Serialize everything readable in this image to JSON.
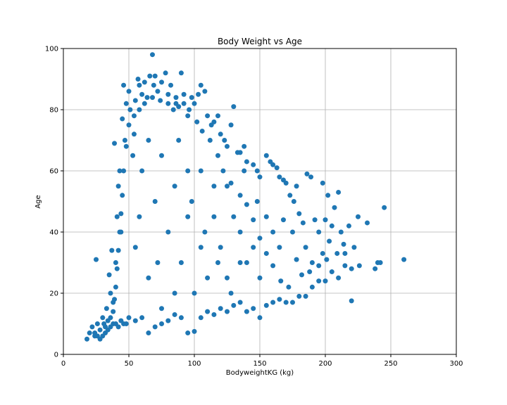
{
  "chart_data": {
    "type": "scatter",
    "title": "Body Weight vs Age",
    "xlabel": "BodyweightKG (kg)",
    "ylabel": "Age",
    "xlim": [
      0,
      300
    ],
    "ylim": [
      0,
      100
    ],
    "xticks": [
      "0",
      "50",
      "100",
      "150",
      "200",
      "250",
      "300"
    ],
    "yticks": [
      "0",
      "20",
      "40",
      "60",
      "80",
      "100"
    ],
    "grid": true,
    "color": "#1f77b4",
    "series": [
      {
        "points": [
          [
            18,
            5
          ],
          [
            20,
            7
          ],
          [
            22,
            9
          ],
          [
            24,
            6
          ],
          [
            25,
            31
          ],
          [
            26,
            10
          ],
          [
            28,
            8
          ],
          [
            30,
            12
          ],
          [
            32,
            9
          ],
          [
            33,
            15
          ],
          [
            35,
            26
          ],
          [
            36,
            20
          ],
          [
            37,
            34
          ],
          [
            38,
            17
          ],
          [
            39,
            69
          ],
          [
            40,
            30
          ],
          [
            41,
            45
          ],
          [
            42,
            55
          ],
          [
            43,
            60
          ],
          [
            44,
            40
          ],
          [
            45,
            77
          ],
          [
            46,
            88
          ],
          [
            47,
            70
          ],
          [
            48,
            82
          ],
          [
            50,
            86
          ],
          [
            51,
            80
          ],
          [
            53,
            65
          ],
          [
            54,
            72
          ],
          [
            55,
            83
          ],
          [
            57,
            90
          ],
          [
            58,
            88
          ],
          [
            60,
            85
          ],
          [
            62,
            89
          ],
          [
            64,
            84
          ],
          [
            66,
            91
          ],
          [
            68,
            98
          ],
          [
            69,
            88
          ],
          [
            70,
            91
          ],
          [
            72,
            86
          ],
          [
            75,
            89
          ],
          [
            78,
            92
          ],
          [
            80,
            85
          ],
          [
            82,
            88
          ],
          [
            84,
            80
          ],
          [
            86,
            84
          ],
          [
            88,
            81
          ],
          [
            90,
            92
          ],
          [
            92,
            85
          ],
          [
            95,
            78
          ],
          [
            98,
            84
          ],
          [
            100,
            82
          ],
          [
            103,
            85
          ],
          [
            105,
            88
          ],
          [
            108,
            86
          ],
          [
            110,
            78
          ],
          [
            113,
            75
          ],
          [
            115,
            76
          ],
          [
            118,
            78
          ],
          [
            120,
            72
          ],
          [
            123,
            70
          ],
          [
            125,
            68
          ],
          [
            128,
            75
          ],
          [
            130,
            81
          ],
          [
            133,
            66
          ],
          [
            135,
            66
          ],
          [
            138,
            68
          ],
          [
            140,
            63
          ],
          [
            145,
            62
          ],
          [
            148,
            60
          ],
          [
            150,
            58
          ],
          [
            155,
            65
          ],
          [
            158,
            63
          ],
          [
            160,
            62
          ],
          [
            163,
            61
          ],
          [
            165,
            58
          ],
          [
            168,
            57
          ],
          [
            170,
            56
          ],
          [
            173,
            52
          ],
          [
            176,
            50
          ],
          [
            178,
            55
          ],
          [
            180,
            46
          ],
          [
            183,
            43
          ],
          [
            186,
            59
          ],
          [
            189,
            58
          ],
          [
            192,
            44
          ],
          [
            195,
            40
          ],
          [
            198,
            56
          ],
          [
            200,
            44
          ],
          [
            202,
            52
          ],
          [
            205,
            42
          ],
          [
            207,
            48
          ],
          [
            210,
            53
          ],
          [
            212,
            40
          ],
          [
            215,
            33
          ],
          [
            218,
            42
          ],
          [
            220,
            17.5
          ],
          [
            222,
            35
          ],
          [
            225,
            45
          ],
          [
            232,
            43
          ],
          [
            240,
            30
          ],
          [
            242,
            30
          ],
          [
            245,
            48
          ],
          [
            260,
            31
          ],
          [
            24,
            7
          ],
          [
            26,
            6
          ],
          [
            28,
            5
          ],
          [
            30,
            6
          ],
          [
            32,
            7
          ],
          [
            34,
            8
          ],
          [
            36,
            9
          ],
          [
            38,
            10
          ],
          [
            40,
            10
          ],
          [
            42,
            9
          ],
          [
            44,
            11
          ],
          [
            46,
            10
          ],
          [
            48,
            10
          ],
          [
            50,
            12
          ],
          [
            55,
            11
          ],
          [
            60,
            12
          ],
          [
            65,
            7
          ],
          [
            70,
            9
          ],
          [
            75,
            10
          ],
          [
            80,
            11
          ],
          [
            85,
            13
          ],
          [
            90,
            12
          ],
          [
            95,
            7
          ],
          [
            100,
            7.5
          ],
          [
            105,
            12
          ],
          [
            110,
            14
          ],
          [
            115,
            13
          ],
          [
            120,
            15
          ],
          [
            125,
            14
          ],
          [
            130,
            16
          ],
          [
            135,
            17
          ],
          [
            140,
            14
          ],
          [
            145,
            15
          ],
          [
            150,
            12
          ],
          [
            155,
            16
          ],
          [
            160,
            17
          ],
          [
            165,
            18
          ],
          [
            170,
            17
          ],
          [
            175,
            17
          ],
          [
            180,
            19
          ],
          [
            185,
            19
          ],
          [
            190,
            22
          ],
          [
            195,
            24
          ],
          [
            200,
            24
          ],
          [
            205,
            27
          ],
          [
            210,
            25
          ],
          [
            215,
            29
          ],
          [
            220,
            28
          ],
          [
            226,
            29
          ],
          [
            238,
            28
          ],
          [
            190,
            30
          ],
          [
            185,
            35
          ],
          [
            175,
            40
          ],
          [
            168,
            44
          ],
          [
            198,
            33
          ],
          [
            203,
            37
          ],
          [
            209,
            33
          ],
          [
            214,
            36
          ],
          [
            182,
            26
          ],
          [
            178,
            31
          ],
          [
            188,
            27
          ],
          [
            195,
            29
          ],
          [
            201,
            31
          ],
          [
            172,
            22
          ],
          [
            166,
            24
          ],
          [
            160,
            29
          ],
          [
            155,
            33
          ],
          [
            150,
            38
          ],
          [
            145,
            44
          ],
          [
            140,
            49
          ],
          [
            135,
            52
          ],
          [
            128,
            56
          ],
          [
            122,
            60
          ],
          [
            118,
            65
          ],
          [
            112,
            70
          ],
          [
            106,
            73
          ],
          [
            102,
            76
          ],
          [
            96,
            80
          ],
          [
            92,
            82
          ],
          [
            86,
            82
          ],
          [
            80,
            82
          ],
          [
            74,
            83
          ],
          [
            68,
            84
          ],
          [
            62,
            82
          ],
          [
            58,
            80
          ],
          [
            54,
            78
          ],
          [
            50,
            75
          ],
          [
            48,
            68
          ],
          [
            46,
            60
          ],
          [
            45,
            52
          ],
          [
            44,
            46
          ],
          [
            43,
            40
          ],
          [
            42,
            34
          ],
          [
            41,
            28
          ],
          [
            40,
            22
          ],
          [
            39,
            18
          ],
          [
            38,
            14
          ],
          [
            36,
            12
          ],
          [
            34,
            11
          ],
          [
            31,
            10
          ],
          [
            60,
            60
          ],
          [
            70,
            50
          ],
          [
            80,
            40
          ],
          [
            90,
            30
          ],
          [
            100,
            20
          ],
          [
            110,
            25
          ],
          [
            120,
            35
          ],
          [
            130,
            45
          ],
          [
            140,
            30
          ],
          [
            150,
            25
          ],
          [
            65,
            70
          ],
          [
            75,
            65
          ],
          [
            85,
            55
          ],
          [
            95,
            45
          ],
          [
            105,
            35
          ],
          [
            115,
            45
          ],
          [
            125,
            55
          ],
          [
            135,
            40
          ],
          [
            145,
            35
          ],
          [
            155,
            45
          ],
          [
            55,
            35
          ],
          [
            65,
            25
          ],
          [
            75,
            15
          ],
          [
            85,
            20
          ],
          [
            95,
            60
          ],
          [
            105,
            60
          ],
          [
            115,
            55
          ],
          [
            125,
            25
          ],
          [
            135,
            30
          ],
          [
            160,
            40
          ],
          [
            58,
            45
          ],
          [
            72,
            30
          ],
          [
            88,
            70
          ],
          [
            98,
            50
          ],
          [
            108,
            40
          ],
          [
            118,
            30
          ],
          [
            128,
            20
          ],
          [
            138,
            60
          ],
          [
            148,
            50
          ],
          [
            165,
            35
          ]
        ]
      }
    ]
  }
}
